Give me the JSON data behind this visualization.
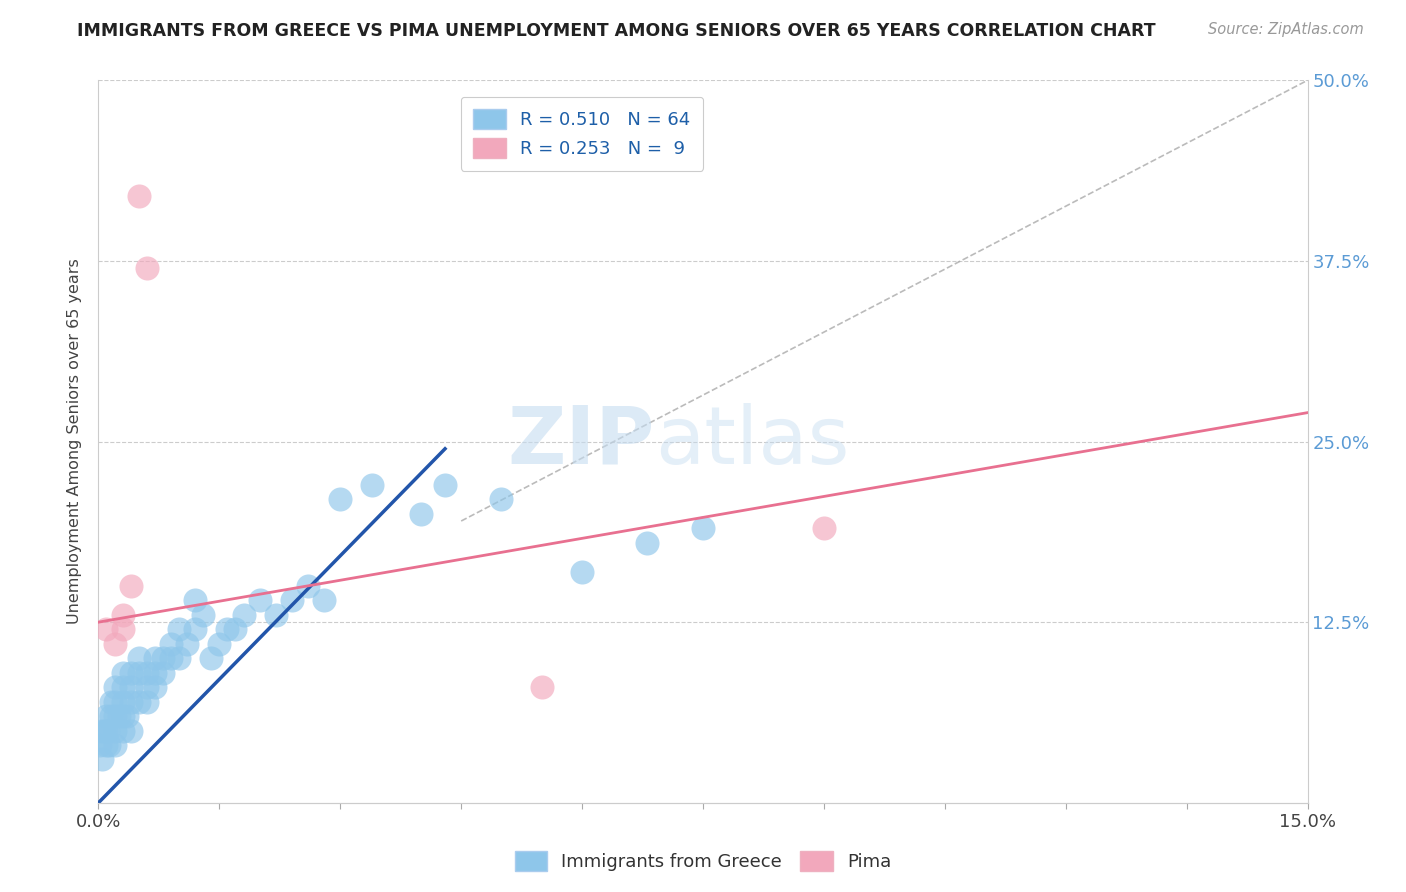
{
  "title": "IMMIGRANTS FROM GREECE VS PIMA UNEMPLOYMENT AMONG SENIORS OVER 65 YEARS CORRELATION CHART",
  "source": "Source: ZipAtlas.com",
  "ylabel": "Unemployment Among Seniors over 65 years",
  "xlim": [
    0.0,
    0.15
  ],
  "ylim": [
    0.0,
    0.5
  ],
  "xtick_positions": [
    0.0,
    0.015,
    0.03,
    0.045,
    0.06,
    0.075,
    0.09,
    0.105,
    0.12,
    0.135,
    0.15
  ],
  "xtick_labels": [
    "0.0%",
    "",
    "",
    "",
    "",
    "",
    "",
    "",
    "",
    "",
    "15.0%"
  ],
  "ytick_positions": [
    0.0,
    0.125,
    0.25,
    0.375,
    0.5
  ],
  "ytick_labels_right": [
    "",
    "12.5%",
    "25.0%",
    "37.5%",
    "50.0%"
  ],
  "blue_color": "#8EC6EA",
  "pink_color": "#F2A8BC",
  "blue_line_color": "#2255AA",
  "pink_line_color": "#E87090",
  "blue_r": "0.510",
  "blue_n": "64",
  "pink_r": "0.253",
  "pink_n": "9",
  "blue_scatter_x": [
    0.0002,
    0.0003,
    0.0005,
    0.0007,
    0.001,
    0.001,
    0.001,
    0.0012,
    0.0013,
    0.0015,
    0.0015,
    0.002,
    0.002,
    0.002,
    0.002,
    0.002,
    0.0025,
    0.003,
    0.003,
    0.003,
    0.003,
    0.003,
    0.0035,
    0.004,
    0.004,
    0.004,
    0.004,
    0.005,
    0.005,
    0.005,
    0.006,
    0.006,
    0.006,
    0.007,
    0.007,
    0.007,
    0.008,
    0.008,
    0.009,
    0.009,
    0.01,
    0.01,
    0.011,
    0.012,
    0.012,
    0.013,
    0.014,
    0.015,
    0.016,
    0.017,
    0.018,
    0.02,
    0.022,
    0.024,
    0.026,
    0.028,
    0.03,
    0.034,
    0.04,
    0.043,
    0.05,
    0.06,
    0.068,
    0.075
  ],
  "blue_scatter_y": [
    0.04,
    0.05,
    0.03,
    0.05,
    0.04,
    0.05,
    0.06,
    0.05,
    0.04,
    0.06,
    0.07,
    0.04,
    0.05,
    0.06,
    0.07,
    0.08,
    0.06,
    0.05,
    0.06,
    0.07,
    0.08,
    0.09,
    0.06,
    0.05,
    0.07,
    0.08,
    0.09,
    0.07,
    0.09,
    0.1,
    0.07,
    0.08,
    0.09,
    0.08,
    0.09,
    0.1,
    0.09,
    0.1,
    0.1,
    0.11,
    0.1,
    0.12,
    0.11,
    0.12,
    0.14,
    0.13,
    0.1,
    0.11,
    0.12,
    0.12,
    0.13,
    0.14,
    0.13,
    0.14,
    0.15,
    0.14,
    0.21,
    0.22,
    0.2,
    0.22,
    0.21,
    0.16,
    0.18,
    0.19
  ],
  "pink_scatter_x": [
    0.001,
    0.002,
    0.003,
    0.003,
    0.004,
    0.005,
    0.006,
    0.055,
    0.09
  ],
  "pink_scatter_y": [
    0.12,
    0.11,
    0.12,
    0.13,
    0.15,
    0.42,
    0.37,
    0.08,
    0.19
  ],
  "blue_trend_x": [
    0.0,
    0.043
  ],
  "blue_trend_y": [
    0.0,
    0.245
  ],
  "pink_trend_x": [
    0.0,
    0.15
  ],
  "pink_trend_y": [
    0.125,
    0.27
  ],
  "ref_line_x": [
    0.045,
    0.15
  ],
  "ref_line_y": [
    0.195,
    0.5
  ],
  "watermark_zip": "ZIP",
  "watermark_atlas": "atlas"
}
